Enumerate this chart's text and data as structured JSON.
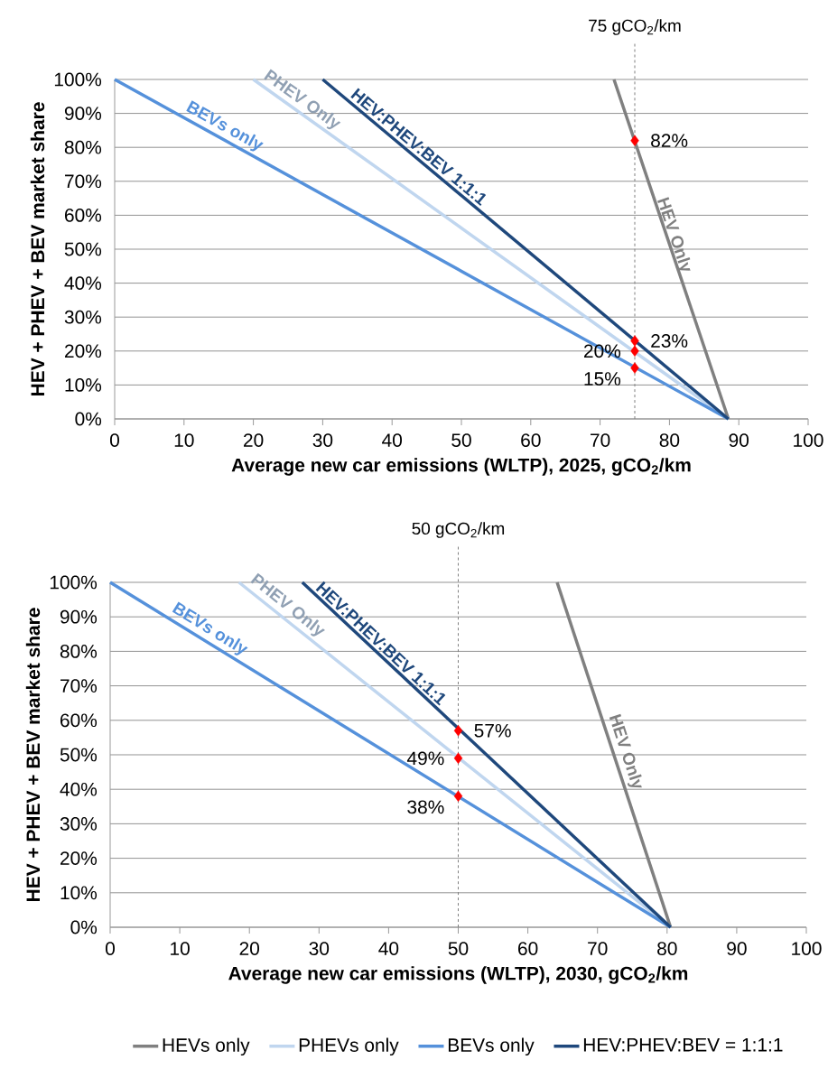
{
  "chart_data": [
    {
      "type": "line",
      "xlabel": "Average new car emissions (WLTP), 2025, gCO$_{2}$/km",
      "ylabel": "HEV + PHEV + BEV market share",
      "xlim": [
        0,
        100
      ],
      "xticks": [
        0,
        10,
        20,
        30,
        40,
        50,
        60,
        70,
        80,
        90,
        100
      ],
      "ylim": [
        0,
        100
      ],
      "yticks": [
        {
          "value": 0,
          "label": "0%"
        },
        {
          "value": 10,
          "label": "10%"
        },
        {
          "value": 20,
          "label": "20%"
        },
        {
          "value": 30,
          "label": "30%"
        },
        {
          "value": 40,
          "label": "40%"
        },
        {
          "value": 50,
          "label": "50%"
        },
        {
          "value": 60,
          "label": "60%"
        },
        {
          "value": 70,
          "label": "70%"
        },
        {
          "value": 80,
          "label": "80%"
        },
        {
          "value": 90,
          "label": "90%"
        },
        {
          "value": 100,
          "label": "100%"
        }
      ],
      "grid": "y",
      "marker": "none",
      "line_style": "solid",
      "ref_lines": [
        {
          "axis": "x",
          "value": 75,
          "label": "75 gCO$_{2}$/km",
          "line_style": "dashed",
          "color": "#808080"
        }
      ],
      "annotations": [
        {
          "text": "BEVs only",
          "x": 15,
          "y": 83
        },
        {
          "text": "PHEV Only",
          "x": 26,
          "y": 91
        },
        {
          "text": "HEV:PHEV:BEV 1:1:1",
          "x": 43,
          "y": 78
        },
        {
          "text": "HEV Only",
          "x": 79,
          "y": 53
        }
      ],
      "series": [
        {
          "type": "line",
          "color": "#808080",
          "x": [
            72,
            88.5
          ],
          "values": [
            100,
            0
          ]
        },
        {
          "type": "line",
          "color": "#c0d6ef",
          "x": [
            20,
            88.5
          ],
          "values": [
            100,
            0
          ]
        },
        {
          "type": "line",
          "color": "#5591db",
          "x": [
            0,
            88.5
          ],
          "values": [
            100,
            0
          ]
        },
        {
          "type": "line",
          "color": "#1f487c",
          "x": [
            30,
            88.5
          ],
          "values": [
            100,
            0
          ]
        },
        {
          "type": "scatter",
          "color": "#ff0000",
          "marker": "diamond",
          "x": [
            75,
            75,
            75,
            75
          ],
          "values": [
            82,
            23,
            20,
            15
          ],
          "value_labels": [
            "82%",
            "23%",
            "20%",
            "15%"
          ]
        }
      ]
    },
    {
      "type": "line",
      "xlabel": "Average new car emissions (WLTP), 2030, gCO$_{2}$/km",
      "ylabel": "HEV + PHEV + BEV market share",
      "xlim": [
        0,
        100
      ],
      "xticks": [
        0,
        10,
        20,
        30,
        40,
        50,
        60,
        70,
        80,
        90,
        100
      ],
      "ylim": [
        0,
        100
      ],
      "yticks": [
        {
          "value": 0,
          "label": "0%"
        },
        {
          "value": 10,
          "label": "10%"
        },
        {
          "value": 20,
          "label": "20%"
        },
        {
          "value": 30,
          "label": "30%"
        },
        {
          "value": 40,
          "label": "40%"
        },
        {
          "value": 50,
          "label": "50%"
        },
        {
          "value": 60,
          "label": "60%"
        },
        {
          "value": 70,
          "label": "70%"
        },
        {
          "value": 80,
          "label": "80%"
        },
        {
          "value": 90,
          "label": "90%"
        },
        {
          "value": 100,
          "label": "100%"
        }
      ],
      "grid": "y",
      "marker": "none",
      "line_style": "solid",
      "legend": "bottom",
      "ref_lines": [
        {
          "axis": "x",
          "value": 50,
          "label": "50 gCO$_{2}$/km",
          "line_style": "dashed",
          "color": "#808080"
        }
      ],
      "annotations": [
        {
          "text": "BEVs only",
          "x": 13.4,
          "y": 83.4
        },
        {
          "text": "PHEV Only",
          "x": 24.4,
          "y": 90.5
        },
        {
          "text": "HEV:PHEV:BEV 1:1:1",
          "x": 38,
          "y": 80.3
        },
        {
          "text": "HEV Only",
          "x": 72.4,
          "y": 49.7
        }
      ],
      "series": [
        {
          "type": "line",
          "name": "HEVs only",
          "color": "#808080",
          "x": [
            64.2,
            80.5
          ],
          "values": [
            100,
            0
          ]
        },
        {
          "type": "line",
          "name": "PHEVs only",
          "color": "#c0d6ef",
          "x": [
            18.5,
            80.5
          ],
          "values": [
            100,
            0
          ]
        },
        {
          "type": "line",
          "name": "BEVs only",
          "color": "#5591db",
          "x": [
            0,
            80.5
          ],
          "values": [
            100,
            0
          ]
        },
        {
          "type": "line",
          "name": "HEV:PHEV:BEV = 1:1:1",
          "color": "#1f487c",
          "x": [
            27.6,
            80.5
          ],
          "values": [
            100,
            0
          ]
        },
        {
          "type": "scatter",
          "color": "#ff0000",
          "marker": "diamond",
          "x": [
            50,
            50,
            50
          ],
          "values": [
            57,
            49,
            38
          ],
          "value_labels": [
            "57%",
            "49%",
            "38%"
          ]
        }
      ]
    }
  ]
}
